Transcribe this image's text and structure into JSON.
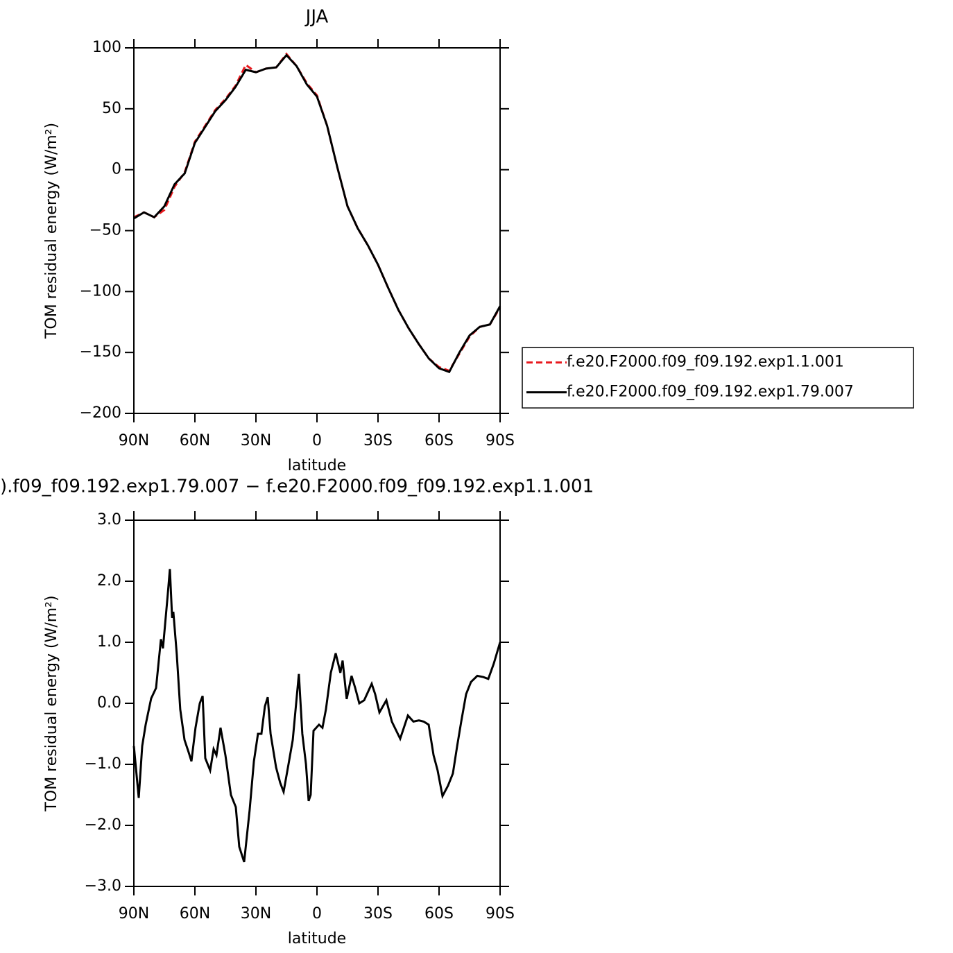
{
  "chart_data": [
    {
      "type": "line",
      "title": "JJA",
      "xlabel": "latitude",
      "ylabel": "TOM residual energy (W/m²)",
      "x": [
        90,
        85,
        80,
        75,
        70,
        65,
        60,
        55,
        50,
        45,
        40,
        35,
        30,
        25,
        20,
        15,
        10,
        5,
        0,
        -5,
        -10,
        -15,
        -20,
        -25,
        -30,
        -35,
        -40,
        -45,
        -50,
        -55,
        -60,
        -65,
        -70,
        -75,
        -80,
        -85,
        -90
      ],
      "series": [
        {
          "name": "f.e20.F2000.f09_f09.192.exp1.1.001",
          "color": "#e8191e",
          "dashed": true,
          "values": [
            -39,
            -35,
            -39,
            -33,
            -14,
            -2,
            23,
            36,
            49,
            58,
            69,
            86,
            80,
            83,
            84,
            95,
            85,
            71,
            61,
            36,
            2,
            -30,
            -48,
            -62,
            -78,
            -97,
            -115,
            -130,
            -143,
            -155,
            -162,
            -165,
            -151,
            -137,
            -129,
            -127,
            -113
          ]
        },
        {
          "name": "f.e20.F2000.f09_f09.192.exp1.79.007",
          "color": "#000000",
          "dashed": false,
          "values": [
            -40,
            -35,
            -39,
            -30,
            -12,
            -3,
            22,
            35,
            48,
            57,
            68,
            82,
            80,
            83,
            84,
            94,
            85,
            70,
            60,
            36,
            2,
            -30,
            -48,
            -62,
            -78,
            -97,
            -115,
            -130,
            -143,
            -155,
            -163,
            -166,
            -150,
            -136,
            -129,
            -127,
            -112
          ]
        }
      ],
      "xlim": [
        90,
        -90
      ],
      "xticks": [
        {
          "value": 90,
          "label": "90N"
        },
        {
          "value": 60,
          "label": "60N"
        },
        {
          "value": 30,
          "label": "30N"
        },
        0,
        {
          "value": -30,
          "label": "30S"
        },
        {
          "value": -60,
          "label": "60S"
        },
        {
          "value": -90,
          "label": "90S"
        }
      ],
      "ylim": [
        -200,
        100
      ],
      "yticks": [
        100,
        50,
        0,
        {
          "value": -50,
          "label": "−50"
        },
        {
          "value": -100,
          "label": "−100"
        },
        {
          "value": -150,
          "label": "−150"
        },
        {
          "value": -200,
          "label": "−200"
        }
      ],
      "legend": "right"
    },
    {
      "type": "line",
      "title": ").f09_f09.192.exp1.79.007 − f.e20.F2000.f09_f09.192.exp1.1.001",
      "xlabel": "latitude",
      "ylabel": "TOM residual energy (W/m²)",
      "x": [
        90,
        87.6,
        85.9,
        84.2,
        81.5,
        79.1,
        76.7,
        75.7,
        73.3,
        72.3,
        71.2,
        70.6,
        68.9,
        67.2,
        65.1,
        63.1,
        61.7,
        59.7,
        57.6,
        56.2,
        54.9,
        52.5,
        50.8,
        49.4,
        47.4,
        45,
        42.3,
        39.9,
        38.2,
        35.8,
        33.1,
        31,
        29,
        27.3,
        25.6,
        24.2,
        22.8,
        20.1,
        18.1,
        16.4,
        14,
        11.9,
        8.9,
        7.2,
        5.4,
        4.1,
        3.1,
        1.7,
        -1,
        -2.7,
        -4.4,
        -6.8,
        -9.2,
        -11.5,
        -12.6,
        -14.6,
        -17,
        -18.8,
        -20.8,
        -23.2,
        -26.9,
        -28.6,
        -30.7,
        -32.4,
        -34.1,
        -36.8,
        -40.9,
        -44.7,
        -47.4,
        -50.1,
        -52.5,
        -54.9,
        -57.3,
        -59.3,
        -61.7,
        -64.4,
        -66.8,
        -68.9,
        -70.9,
        -73.3,
        -75.7,
        -78.8,
        -81.8,
        -84.2,
        -86.9,
        -90
      ],
      "series": [
        {
          "color": "#000000",
          "dashed": false,
          "values": [
            -0.7,
            -1.55,
            -0.7,
            -0.35,
            0.08,
            0.25,
            1.05,
            0.9,
            1.8,
            2.2,
            1.4,
            1.5,
            0.8,
            -0.1,
            -0.6,
            -0.8,
            -0.95,
            -0.4,
            0,
            0.12,
            -0.9,
            -1.1,
            -0.75,
            -0.85,
            -0.4,
            -0.85,
            -1.5,
            -1.7,
            -2.35,
            -2.6,
            -1.75,
            -0.95,
            -0.5,
            -0.5,
            -0.05,
            0.1,
            -0.5,
            -1.05,
            -1.3,
            -1.45,
            -1,
            -0.6,
            0.48,
            -0.5,
            -1,
            -1.6,
            -1.5,
            -0.45,
            -0.35,
            -0.4,
            -0.1,
            0.5,
            0.82,
            0.5,
            0.7,
            0.07,
            0.45,
            0.25,
            0,
            0.05,
            0.32,
            0.15,
            -0.15,
            -0.05,
            0.05,
            -0.3,
            -0.58,
            -0.2,
            -0.3,
            -0.28,
            -0.3,
            -0.35,
            -0.85,
            -1.1,
            -1.52,
            -1.35,
            -1.15,
            -0.7,
            -0.3,
            0.15,
            0.35,
            0.45,
            0.43,
            0.4,
            0.65,
            1
          ]
        }
      ],
      "xlim": [
        90,
        -90
      ],
      "xticks": [
        {
          "value": 90,
          "label": "90N"
        },
        {
          "value": 60,
          "label": "60N"
        },
        {
          "value": 30,
          "label": "30N"
        },
        0,
        {
          "value": -30,
          "label": "30S"
        },
        {
          "value": -60,
          "label": "60S"
        },
        {
          "value": -90,
          "label": "90S"
        }
      ],
      "ylim": [
        -3,
        3
      ],
      "yticks": [
        {
          "value": 3,
          "label": "3.0"
        },
        {
          "value": 2,
          "label": "2.0"
        },
        {
          "value": 1,
          "label": "1.0"
        },
        {
          "value": 0,
          "label": "0.0"
        },
        {
          "value": -1,
          "label": "−1.0"
        },
        {
          "value": -2,
          "label": "−2.0"
        },
        {
          "value": -3,
          "label": "−3.0"
        }
      ]
    }
  ]
}
